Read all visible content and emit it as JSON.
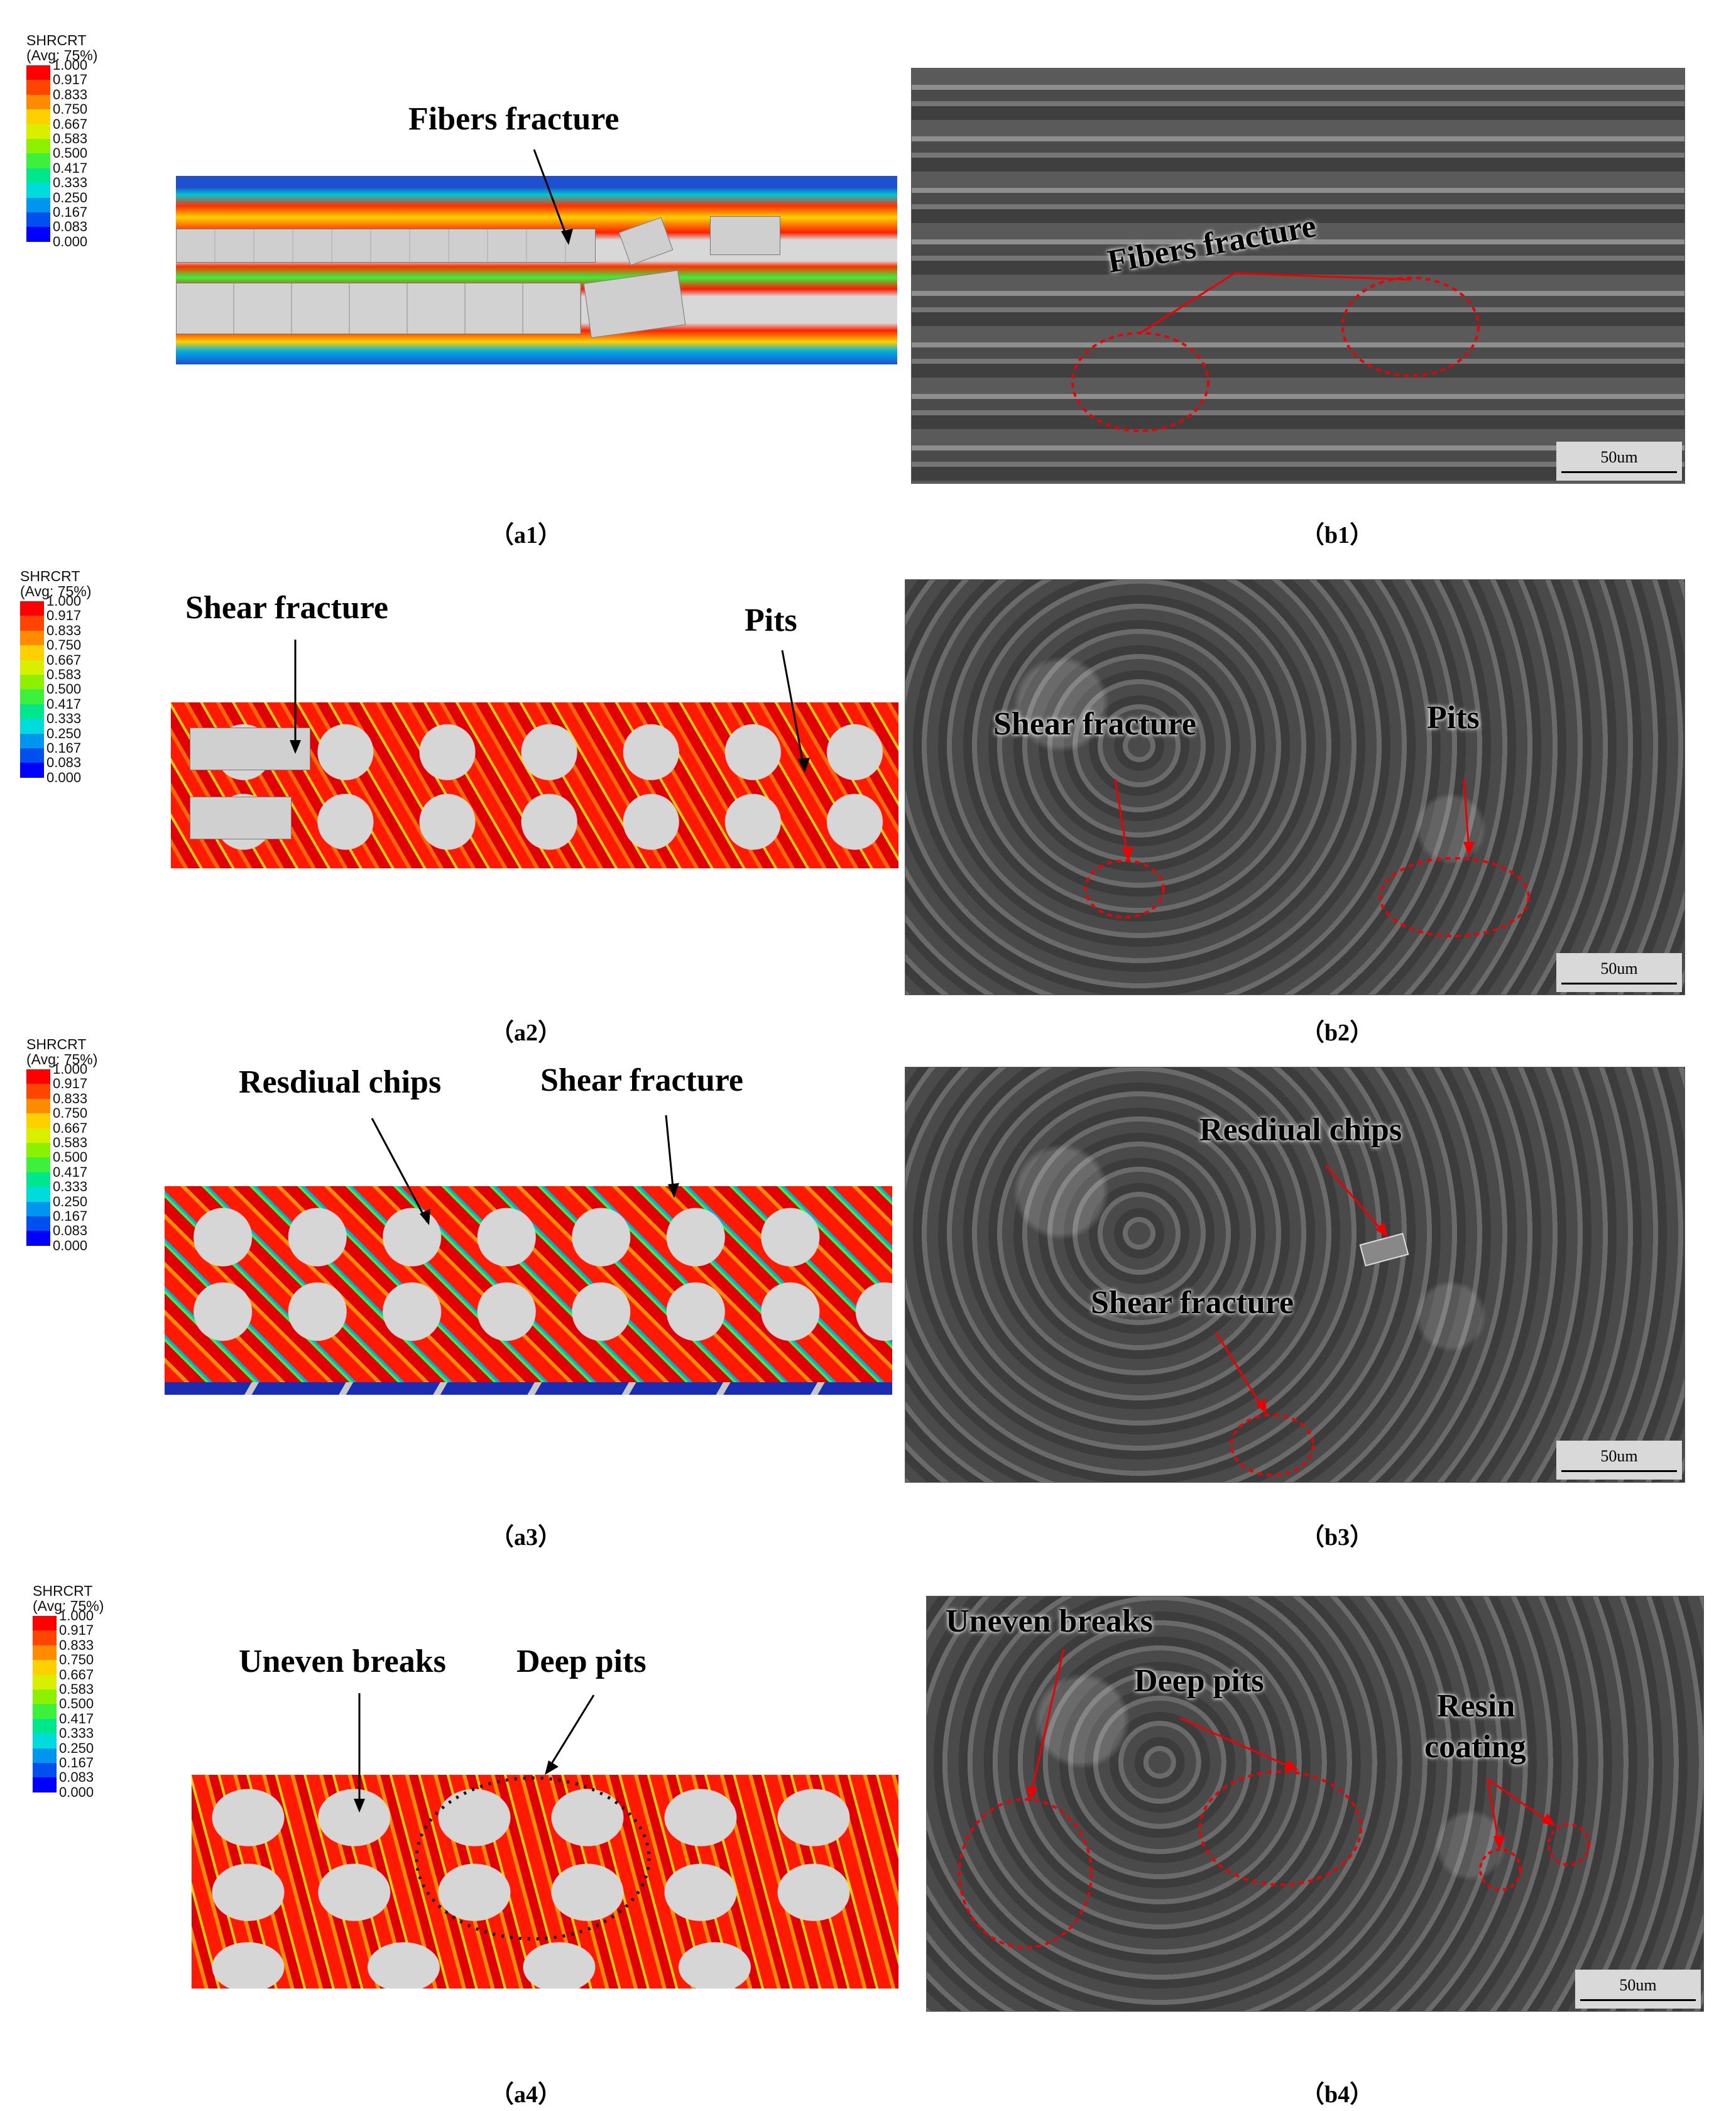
{
  "legend": {
    "title": "SHRCRT",
    "subtitle": "(Avg: 75%)",
    "values": [
      "1.000",
      "0.917",
      "0.833",
      "0.750",
      "0.667",
      "0.583",
      "0.500",
      "0.417",
      "0.333",
      "0.250",
      "0.167",
      "0.083",
      "0.000"
    ],
    "colors": [
      "#ff0000",
      "#ff4500",
      "#ff8c00",
      "#ffd000",
      "#d8f000",
      "#8cf000",
      "#3cf03c",
      "#00e68c",
      "#00dcdc",
      "#0096f0",
      "#0050f0",
      "#0000ff"
    ]
  },
  "rows": [
    {
      "sim_labels": [
        "Fibers fracture"
      ],
      "sem_labels": [
        "Fibers fracture"
      ],
      "scale": "50um",
      "captions": {
        "a": "（a1）",
        "b": "（b1）"
      }
    },
    {
      "sim_labels": [
        "Shear fracture",
        "Pits"
      ],
      "sem_labels": [
        "Shear fracture",
        "Pits"
      ],
      "scale": "50um",
      "captions": {
        "a": "（a2）",
        "b": "（b2）"
      }
    },
    {
      "sim_labels": [
        "Resdiual chips",
        "Shear fracture"
      ],
      "sem_labels": [
        "Resdiual chips",
        "Shear fracture"
      ],
      "scale": "50um",
      "captions": {
        "a": "（a3）",
        "b": "（b3）"
      }
    },
    {
      "sim_labels": [
        "Uneven breaks",
        "Deep pits"
      ],
      "sem_labels": [
        "Uneven breaks",
        "Deep pits",
        "Resin",
        "coating"
      ],
      "scale": "50um",
      "captions": {
        "a": "（a4）",
        "b": "（b4）"
      }
    }
  ]
}
